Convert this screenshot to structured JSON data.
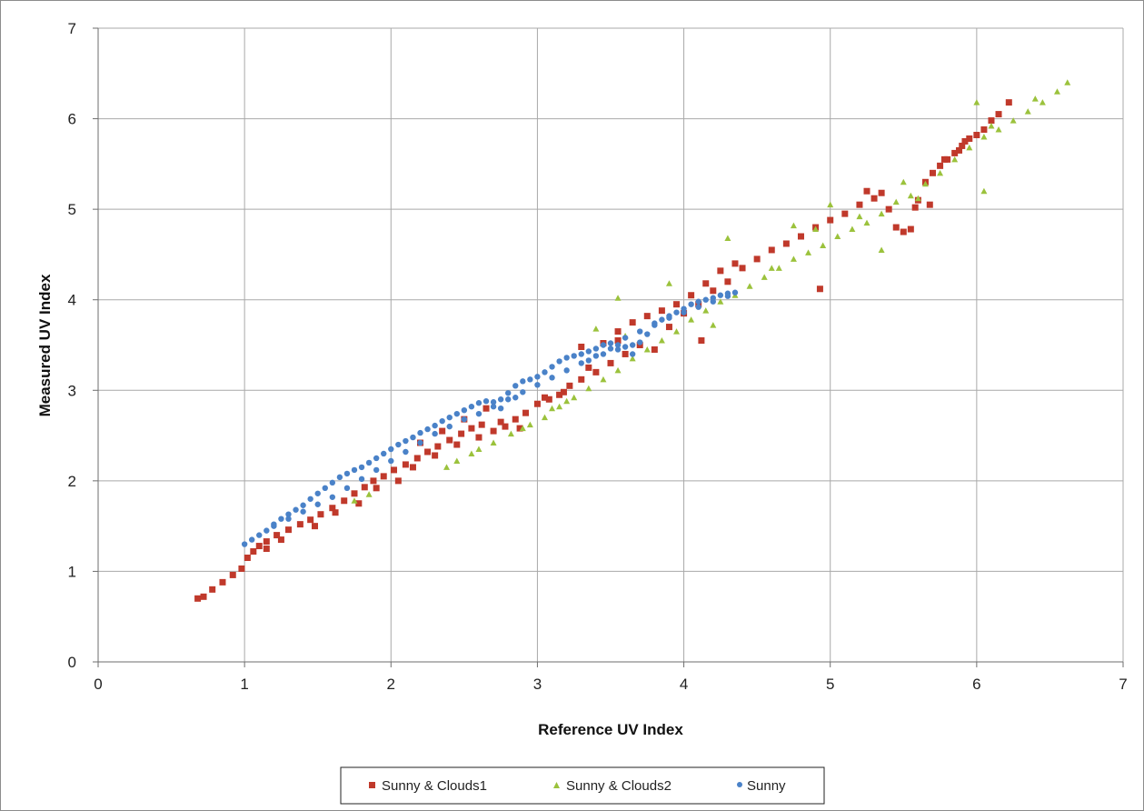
{
  "chart_data": {
    "type": "scatter",
    "title": "",
    "xlabel": "Reference UV Index",
    "ylabel": "Measured UV Index",
    "xlim": [
      0,
      7
    ],
    "ylim": [
      0,
      7
    ],
    "x_ticks": [
      "0",
      "1",
      "2",
      "3",
      "4",
      "5",
      "6",
      "7"
    ],
    "y_ticks": [
      "0",
      "1",
      "2",
      "3",
      "4",
      "5",
      "6",
      "7"
    ],
    "grid": true,
    "legend_position": "bottom",
    "series": [
      {
        "name": "Sunny & Clouds1",
        "color": "#c0392b",
        "marker": "square",
        "points": [
          [
            0.68,
            0.7
          ],
          [
            0.72,
            0.72
          ],
          [
            0.78,
            0.8
          ],
          [
            0.85,
            0.88
          ],
          [
            0.92,
            0.96
          ],
          [
            0.98,
            1.03
          ],
          [
            1.02,
            1.15
          ],
          [
            1.06,
            1.22
          ],
          [
            1.1,
            1.28
          ],
          [
            1.15,
            1.33
          ],
          [
            1.22,
            1.4
          ],
          [
            1.3,
            1.46
          ],
          [
            1.38,
            1.52
          ],
          [
            1.45,
            1.57
          ],
          [
            1.52,
            1.63
          ],
          [
            1.6,
            1.7
          ],
          [
            1.68,
            1.78
          ],
          [
            1.75,
            1.86
          ],
          [
            1.82,
            1.93
          ],
          [
            1.88,
            2.0
          ],
          [
            1.95,
            2.05
          ],
          [
            2.02,
            2.12
          ],
          [
            2.1,
            2.18
          ],
          [
            2.18,
            2.25
          ],
          [
            2.25,
            2.32
          ],
          [
            2.32,
            2.38
          ],
          [
            2.4,
            2.45
          ],
          [
            2.48,
            2.52
          ],
          [
            2.55,
            2.58
          ],
          [
            2.62,
            2.62
          ],
          [
            2.7,
            2.55
          ],
          [
            2.78,
            2.6
          ],
          [
            2.85,
            2.68
          ],
          [
            2.92,
            2.75
          ],
          [
            3.0,
            2.85
          ],
          [
            3.08,
            2.9
          ],
          [
            3.15,
            2.95
          ],
          [
            3.22,
            3.05
          ],
          [
            3.3,
            3.12
          ],
          [
            3.4,
            3.2
          ],
          [
            3.5,
            3.3
          ],
          [
            3.6,
            3.4
          ],
          [
            3.7,
            3.5
          ],
          [
            3.8,
            3.45
          ],
          [
            3.9,
            3.7
          ],
          [
            4.0,
            3.85
          ],
          [
            4.1,
            3.95
          ],
          [
            4.2,
            4.1
          ],
          [
            4.3,
            4.2
          ],
          [
            4.4,
            4.35
          ],
          [
            4.5,
            4.45
          ],
          [
            4.6,
            4.55
          ],
          [
            4.7,
            4.62
          ],
          [
            4.8,
            4.7
          ],
          [
            4.9,
            4.8
          ],
          [
            4.93,
            4.12
          ],
          [
            5.0,
            4.88
          ],
          [
            5.1,
            4.95
          ],
          [
            5.2,
            5.05
          ],
          [
            5.3,
            5.12
          ],
          [
            5.4,
            5.0
          ],
          [
            5.45,
            4.8
          ],
          [
            5.5,
            4.75
          ],
          [
            5.55,
            4.78
          ],
          [
            5.6,
            5.1
          ],
          [
            5.65,
            5.3
          ],
          [
            5.7,
            5.4
          ],
          [
            5.75,
            5.48
          ],
          [
            5.8,
            5.55
          ],
          [
            5.85,
            5.62
          ],
          [
            5.9,
            5.7
          ],
          [
            5.95,
            5.78
          ],
          [
            6.0,
            5.82
          ],
          [
            6.05,
            5.88
          ],
          [
            6.1,
            5.98
          ],
          [
            6.15,
            6.05
          ],
          [
            6.22,
            6.18
          ],
          [
            3.3,
            3.48
          ],
          [
            3.45,
            3.52
          ],
          [
            3.55,
            3.65
          ],
          [
            3.65,
            3.75
          ],
          [
            3.75,
            3.82
          ],
          [
            3.85,
            3.88
          ],
          [
            3.95,
            3.95
          ],
          [
            4.05,
            4.05
          ],
          [
            4.15,
            4.18
          ],
          [
            4.25,
            4.32
          ],
          [
            4.35,
            4.4
          ],
          [
            2.2,
            2.42
          ],
          [
            2.35,
            2.55
          ],
          [
            2.5,
            2.68
          ],
          [
            2.65,
            2.8
          ],
          [
            4.12,
            3.55
          ],
          [
            1.15,
            1.25
          ],
          [
            1.25,
            1.35
          ],
          [
            1.48,
            1.5
          ],
          [
            1.62,
            1.65
          ],
          [
            1.78,
            1.75
          ],
          [
            1.9,
            1.92
          ],
          [
            2.05,
            2.0
          ],
          [
            2.15,
            2.15
          ],
          [
            2.3,
            2.28
          ],
          [
            2.45,
            2.4
          ],
          [
            2.6,
            2.48
          ],
          [
            2.75,
            2.65
          ],
          [
            2.88,
            2.58
          ],
          [
            3.05,
            2.92
          ],
          [
            3.18,
            2.98
          ],
          [
            3.35,
            3.25
          ],
          [
            3.55,
            3.55
          ],
          [
            5.25,
            5.2
          ],
          [
            5.35,
            5.18
          ],
          [
            5.58,
            5.02
          ],
          [
            5.68,
            5.05
          ],
          [
            5.78,
            5.55
          ],
          [
            5.88,
            5.65
          ],
          [
            5.92,
            5.75
          ]
        ]
      },
      {
        "name": "Sunny & Clouds2",
        "color": "#9bc23c",
        "marker": "triangle",
        "points": [
          [
            1.75,
            1.78
          ],
          [
            1.85,
            1.85
          ],
          [
            2.38,
            2.15
          ],
          [
            2.45,
            2.22
          ],
          [
            2.55,
            2.3
          ],
          [
            2.7,
            2.42
          ],
          [
            2.82,
            2.52
          ],
          [
            2.95,
            2.62
          ],
          [
            3.05,
            2.7
          ],
          [
            3.15,
            2.82
          ],
          [
            3.25,
            2.92
          ],
          [
            3.35,
            3.02
          ],
          [
            3.45,
            3.12
          ],
          [
            3.55,
            3.22
          ],
          [
            3.55,
            4.02
          ],
          [
            3.65,
            3.35
          ],
          [
            3.75,
            3.45
          ],
          [
            3.85,
            3.55
          ],
          [
            3.95,
            3.65
          ],
          [
            4.05,
            3.78
          ],
          [
            4.15,
            3.88
          ],
          [
            4.25,
            3.98
          ],
          [
            4.35,
            4.05
          ],
          [
            4.45,
            4.15
          ],
          [
            4.55,
            4.25
          ],
          [
            4.65,
            4.35
          ],
          [
            4.75,
            4.45
          ],
          [
            4.85,
            4.52
          ],
          [
            4.95,
            4.6
          ],
          [
            5.0,
            5.05
          ],
          [
            5.05,
            4.7
          ],
          [
            5.15,
            4.78
          ],
          [
            5.25,
            4.85
          ],
          [
            5.35,
            4.95
          ],
          [
            5.45,
            5.08
          ],
          [
            5.5,
            5.3
          ],
          [
            5.55,
            5.15
          ],
          [
            5.65,
            5.28
          ],
          [
            5.75,
            5.4
          ],
          [
            5.85,
            5.55
          ],
          [
            5.95,
            5.68
          ],
          [
            6.0,
            6.18
          ],
          [
            6.05,
            5.8
          ],
          [
            6.05,
            5.2
          ],
          [
            6.15,
            5.88
          ],
          [
            6.25,
            5.98
          ],
          [
            6.35,
            6.08
          ],
          [
            6.45,
            6.18
          ],
          [
            6.55,
            6.3
          ],
          [
            6.62,
            6.4
          ],
          [
            4.3,
            4.68
          ],
          [
            4.75,
            4.82
          ],
          [
            4.6,
            4.35
          ],
          [
            3.4,
            3.68
          ],
          [
            3.6,
            3.6
          ],
          [
            3.9,
            4.18
          ],
          [
            4.2,
            3.72
          ],
          [
            5.35,
            4.55
          ],
          [
            5.6,
            5.12
          ],
          [
            6.1,
            5.92
          ],
          [
            6.4,
            6.22
          ],
          [
            4.9,
            4.78
          ],
          [
            5.2,
            4.92
          ],
          [
            2.6,
            2.35
          ],
          [
            2.9,
            2.58
          ],
          [
            3.1,
            2.8
          ],
          [
            3.2,
            2.88
          ]
        ]
      },
      {
        "name": "Sunny",
        "color": "#4a82c8",
        "marker": "circle",
        "points": [
          [
            1.0,
            1.3
          ],
          [
            1.05,
            1.35
          ],
          [
            1.1,
            1.4
          ],
          [
            1.15,
            1.45
          ],
          [
            1.2,
            1.52
          ],
          [
            1.25,
            1.58
          ],
          [
            1.3,
            1.63
          ],
          [
            1.35,
            1.68
          ],
          [
            1.4,
            1.73
          ],
          [
            1.45,
            1.8
          ],
          [
            1.5,
            1.86
          ],
          [
            1.55,
            1.92
          ],
          [
            1.6,
            1.98
          ],
          [
            1.65,
            2.04
          ],
          [
            1.7,
            2.08
          ],
          [
            1.75,
            2.12
          ],
          [
            1.8,
            2.15
          ],
          [
            1.85,
            2.2
          ],
          [
            1.9,
            2.25
          ],
          [
            1.95,
            2.3
          ],
          [
            2.0,
            2.35
          ],
          [
            2.05,
            2.4
          ],
          [
            2.1,
            2.44
          ],
          [
            2.15,
            2.48
          ],
          [
            2.2,
            2.53
          ],
          [
            2.25,
            2.57
          ],
          [
            2.3,
            2.61
          ],
          [
            2.35,
            2.66
          ],
          [
            2.4,
            2.7
          ],
          [
            2.45,
            2.74
          ],
          [
            2.5,
            2.78
          ],
          [
            2.55,
            2.82
          ],
          [
            2.6,
            2.86
          ],
          [
            2.65,
            2.88
          ],
          [
            2.7,
            2.87
          ],
          [
            2.75,
            2.9
          ],
          [
            2.8,
            2.97
          ],
          [
            2.85,
            3.05
          ],
          [
            2.9,
            3.1
          ],
          [
            2.95,
            3.12
          ],
          [
            3.0,
            3.15
          ],
          [
            3.05,
            3.2
          ],
          [
            3.1,
            3.26
          ],
          [
            3.15,
            3.32
          ],
          [
            3.2,
            3.36
          ],
          [
            3.25,
            3.38
          ],
          [
            3.3,
            3.4
          ],
          [
            3.35,
            3.43
          ],
          [
            3.4,
            3.46
          ],
          [
            3.45,
            3.5
          ],
          [
            3.5,
            3.52
          ],
          [
            3.55,
            3.5
          ],
          [
            3.6,
            3.48
          ],
          [
            3.65,
            3.5
          ],
          [
            3.7,
            3.53
          ],
          [
            3.75,
            3.62
          ],
          [
            3.8,
            3.72
          ],
          [
            3.85,
            3.78
          ],
          [
            3.9,
            3.82
          ],
          [
            3.95,
            3.86
          ],
          [
            4.0,
            3.9
          ],
          [
            4.05,
            3.95
          ],
          [
            4.1,
            3.98
          ],
          [
            4.15,
            4.0
          ],
          [
            4.2,
            4.02
          ],
          [
            4.25,
            4.05
          ],
          [
            4.3,
            4.07
          ],
          [
            4.35,
            4.08
          ],
          [
            1.2,
            1.5
          ],
          [
            1.3,
            1.58
          ],
          [
            1.4,
            1.66
          ],
          [
            1.5,
            1.74
          ],
          [
            1.6,
            1.82
          ],
          [
            1.7,
            1.92
          ],
          [
            1.8,
            2.02
          ],
          [
            1.9,
            2.12
          ],
          [
            2.0,
            2.22
          ],
          [
            2.1,
            2.32
          ],
          [
            2.2,
            2.42
          ],
          [
            2.3,
            2.52
          ],
          [
            2.4,
            2.6
          ],
          [
            2.5,
            2.68
          ],
          [
            2.6,
            2.74
          ],
          [
            2.7,
            2.82
          ],
          [
            2.8,
            2.9
          ],
          [
            2.9,
            2.98
          ],
          [
            3.0,
            3.06
          ],
          [
            3.1,
            3.14
          ],
          [
            3.2,
            3.22
          ],
          [
            3.3,
            3.3
          ],
          [
            3.4,
            3.38
          ],
          [
            3.5,
            3.46
          ],
          [
            3.6,
            3.58
          ],
          [
            3.7,
            3.65
          ],
          [
            3.8,
            3.74
          ],
          [
            3.9,
            3.8
          ],
          [
            4.0,
            3.86
          ],
          [
            4.1,
            3.92
          ],
          [
            4.2,
            3.98
          ],
          [
            4.3,
            4.04
          ],
          [
            2.75,
            2.8
          ],
          [
            2.85,
            2.92
          ],
          [
            3.35,
            3.33
          ],
          [
            3.45,
            3.4
          ],
          [
            3.55,
            3.45
          ],
          [
            3.65,
            3.4
          ]
        ]
      }
    ]
  }
}
